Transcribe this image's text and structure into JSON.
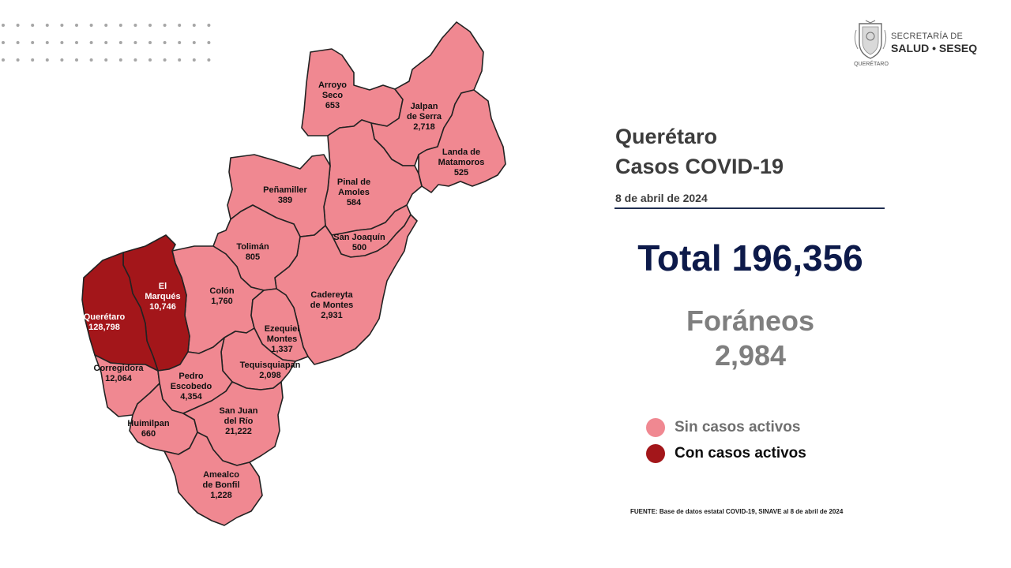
{
  "logo": {
    "line1": "SECRETARÍA DE",
    "line2": "SALUD • SESEQ",
    "line3": "QUERÉTARO"
  },
  "title": {
    "line1": "Querétaro",
    "line2": "Casos COVID-19"
  },
  "date": "8 de abril de 2024",
  "total": "Total 196,356",
  "foraneos": {
    "label": "Foráneos",
    "value": "2,984"
  },
  "legend": [
    {
      "label": "Sin casos activos",
      "color": "#f08891",
      "text_color": "#6f6f6f"
    },
    {
      "label": "Con casos activos",
      "color": "#a3161a",
      "text_color": "#0d0d0d"
    }
  ],
  "source": "FUENTE: Base de datos estatal COVID-19, SINAVE al 8 de abril de 2024",
  "colors": {
    "sin_casos": "#f08891",
    "con_casos": "#a3161a",
    "border": "#222222"
  },
  "municipalities": [
    {
      "id": "arroyo-seco",
      "name_lines": [
        "Arroyo",
        "Seco"
      ],
      "cases": "653",
      "active": false
    },
    {
      "id": "jalpan",
      "name_lines": [
        "Jalpan",
        "de Serra"
      ],
      "cases": "2,718",
      "active": false
    },
    {
      "id": "landa",
      "name_lines": [
        "Landa de",
        "Matamoros"
      ],
      "cases": "525",
      "active": false
    },
    {
      "id": "pinal",
      "name_lines": [
        "Pinal de",
        "Amoles"
      ],
      "cases": "584",
      "active": false
    },
    {
      "id": "penamiller",
      "name_lines": [
        "Peñamiller"
      ],
      "cases": "389",
      "active": false
    },
    {
      "id": "san-joaquin",
      "name_lines": [
        "San Joaquín"
      ],
      "cases": "500",
      "active": false
    },
    {
      "id": "toliman",
      "name_lines": [
        "Tolimán"
      ],
      "cases": "805",
      "active": false
    },
    {
      "id": "colon",
      "name_lines": [
        "Colón"
      ],
      "cases": "1,760",
      "active": false
    },
    {
      "id": "cadereyta",
      "name_lines": [
        "Cadereyta",
        "de Montes"
      ],
      "cases": "2,931",
      "active": false
    },
    {
      "id": "el-marques",
      "name_lines": [
        "El",
        "Marqués"
      ],
      "cases": "10,746",
      "active": true
    },
    {
      "id": "queretaro",
      "name_lines": [
        "Querétaro"
      ],
      "cases": "128,798",
      "active": true
    },
    {
      "id": "ezequiel",
      "name_lines": [
        "Ezequiel",
        "Montes"
      ],
      "cases": "1,337",
      "active": false
    },
    {
      "id": "tequisquiapan",
      "name_lines": [
        "Tequisquiapan"
      ],
      "cases": "2,098",
      "active": false
    },
    {
      "id": "corregidora",
      "name_lines": [
        "Corregidora"
      ],
      "cases": "12,064",
      "active": false
    },
    {
      "id": "pedro-escobedo",
      "name_lines": [
        "Pedro",
        "Escobedo"
      ],
      "cases": "4,354",
      "active": false
    },
    {
      "id": "huimilpan",
      "name_lines": [
        "Huimilpan"
      ],
      "cases": "660",
      "active": false
    },
    {
      "id": "san-juan",
      "name_lines": [
        "San Juan",
        "del Río"
      ],
      "cases": "21,222",
      "active": false
    },
    {
      "id": "amealco",
      "name_lines": [
        "Amealco",
        "de Bonfil"
      ],
      "cases": "1,228",
      "active": false
    }
  ]
}
